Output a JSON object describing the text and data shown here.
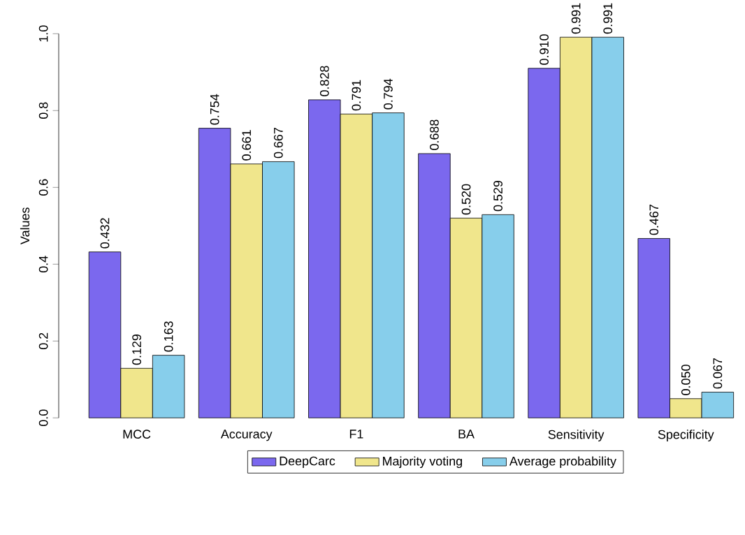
{
  "chart_data": {
    "type": "bar",
    "ylabel": "Values",
    "categories": [
      "MCC",
      "Accuracy",
      "F1",
      "BA",
      "Sensitivity",
      "Specificity"
    ],
    "series": [
      {
        "name": "DeepCarc",
        "color": "#7b68ee",
        "values": [
          0.432,
          0.754,
          0.828,
          0.688,
          0.91,
          0.467
        ],
        "value_labels": [
          "0.432",
          "0.754",
          "0.828",
          "0.688",
          "0.910",
          "0.467"
        ]
      },
      {
        "name": "Majority voting",
        "color": "#f0e68c",
        "values": [
          0.129,
          0.661,
          0.791,
          0.52,
          0.991,
          0.05
        ],
        "value_labels": [
          "0.129",
          "0.661",
          "0.791",
          "0.520",
          "0.991",
          "0.050"
        ]
      },
      {
        "name": "Average probability",
        "color": "#87ceeb",
        "values": [
          0.163,
          0.667,
          0.794,
          0.529,
          0.991,
          0.067
        ],
        "value_labels": [
          "0.163",
          "0.667",
          "0.794",
          "0.529",
          "0.991",
          "0.067"
        ]
      }
    ],
    "ylim": [
      0,
      1
    ],
    "yticks": [
      {
        "value": 0,
        "label": "0.0"
      },
      {
        "value": 0.2,
        "label": "0.2"
      },
      {
        "value": 0.4,
        "label": "0.4"
      },
      {
        "value": 0.6,
        "label": "0.6"
      },
      {
        "value": 0.8,
        "label": "0.8"
      },
      {
        "value": 1,
        "label": "1.0"
      }
    ],
    "grid": false,
    "legend": "bottom"
  }
}
